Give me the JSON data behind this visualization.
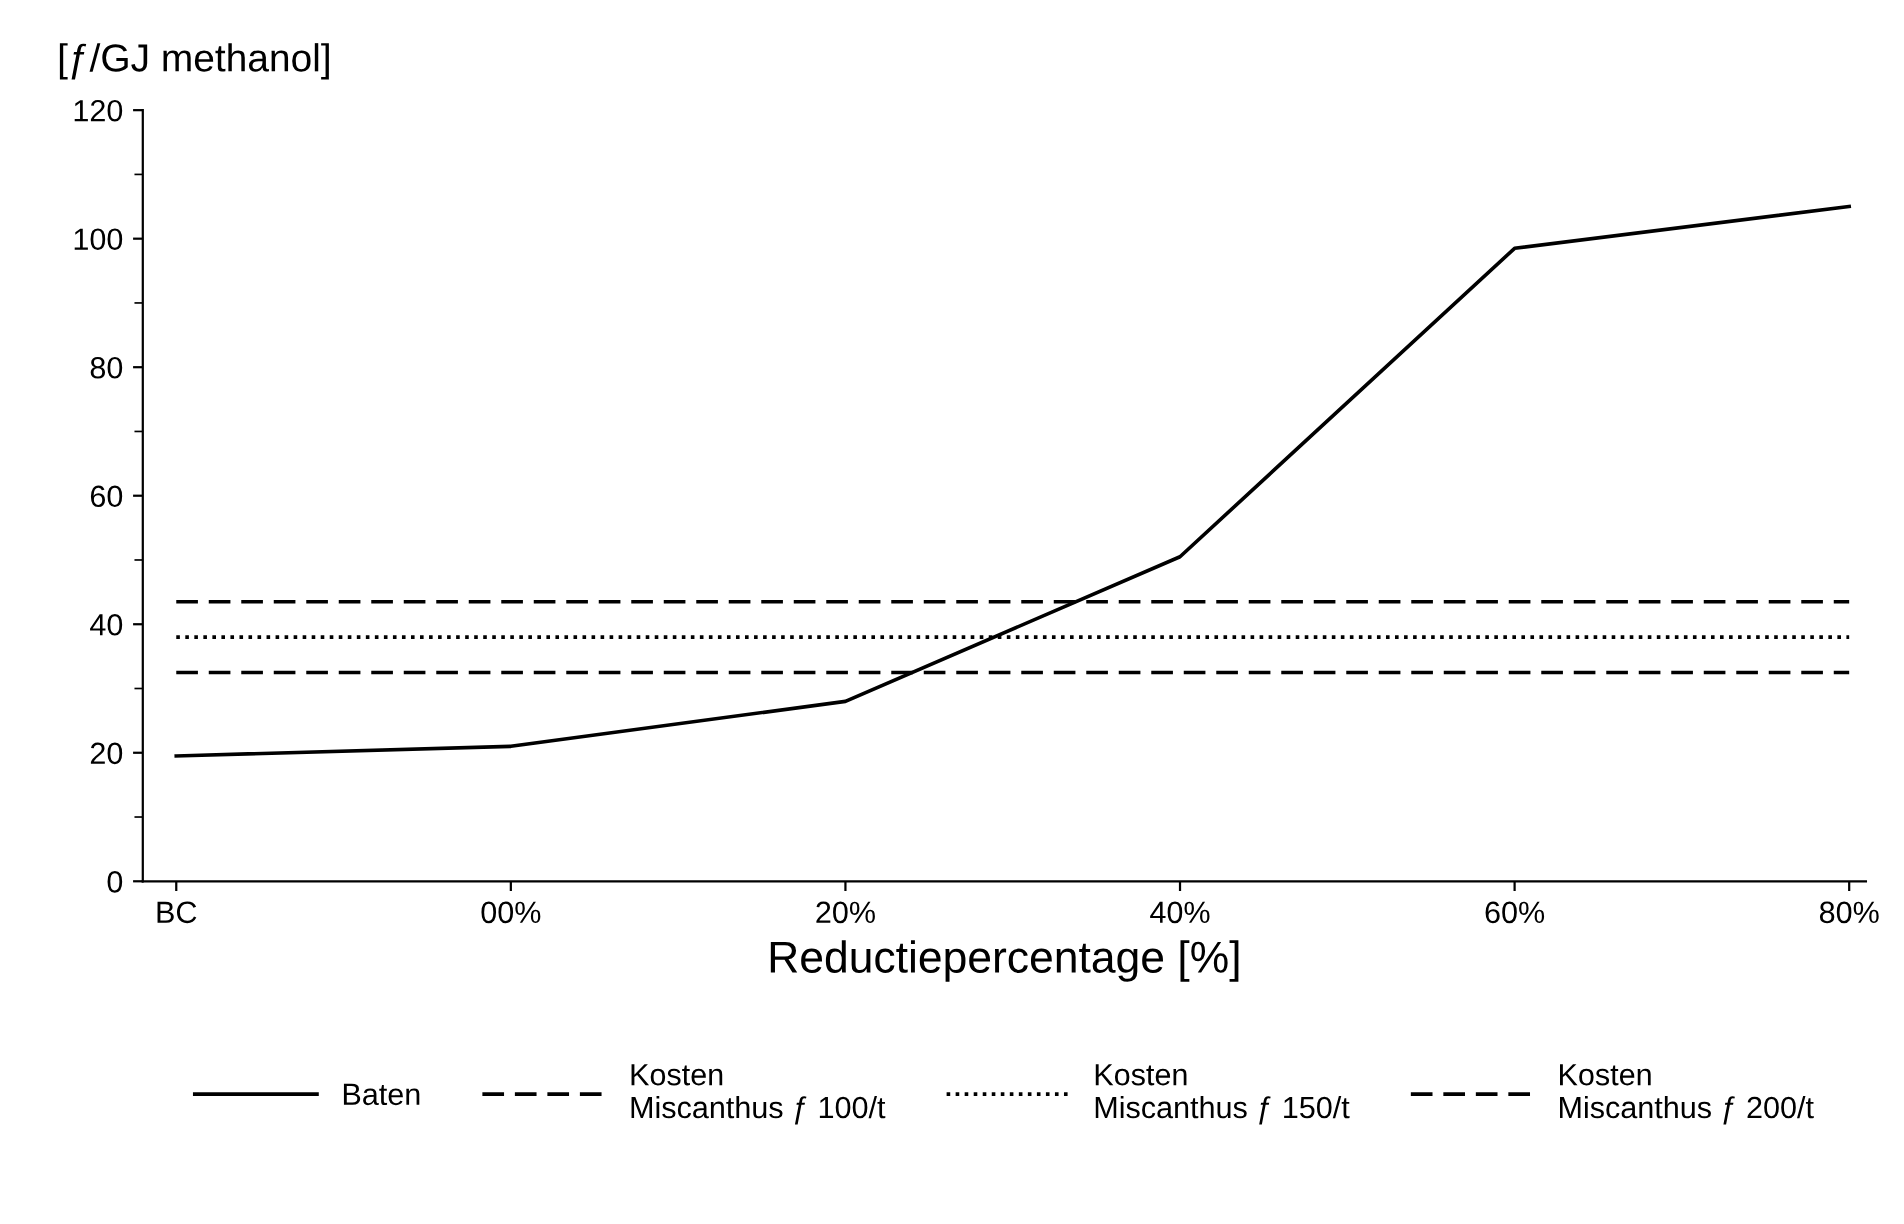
{
  "chart_data": {
    "type": "line",
    "ylabel": "[ƒ/GJ methanol]",
    "xlabel": "Reductiepercentage [%]",
    "categories": [
      "BC",
      "00%",
      "20%",
      "40%",
      "60%",
      "80%"
    ],
    "series": [
      {
        "name": "Baten",
        "color": "#000000",
        "line_style": "solid",
        "values": [
          19.5,
          21,
          28,
          50.5,
          98.5,
          105
        ]
      },
      {
        "name": "Kosten\nMiscanthus ƒ 100/t",
        "color": "#000000",
        "line_style": "dashed",
        "values": [
          32.5,
          32.5,
          32.5,
          32.5,
          32.5,
          32.5
        ]
      },
      {
        "name": "Kosten\nMiscanthus ƒ 150/t",
        "color": "#000000",
        "line_style": "dotted",
        "values": [
          38,
          38,
          38,
          38,
          38,
          38
        ]
      },
      {
        "name": "Kosten\nMiscanthus ƒ 200/t",
        "color": "#000000",
        "line_style": "dashed",
        "values": [
          43.5,
          43.5,
          43.5,
          43.5,
          43.5,
          43.5
        ]
      }
    ],
    "ylim": [
      0,
      120
    ],
    "yticks": [
      0,
      20,
      40,
      60,
      80,
      100,
      120
    ],
    "grid": false,
    "legend": "bottom",
    "marker": "none"
  }
}
